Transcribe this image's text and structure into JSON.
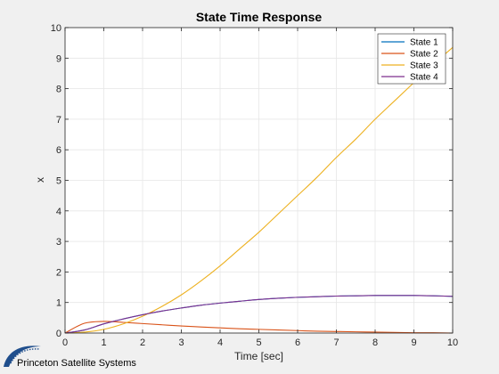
{
  "chart_data": {
    "type": "line",
    "title": "State Time Response",
    "xlabel": "Time [sec]",
    "ylabel": "x",
    "xlim": [
      0,
      10
    ],
    "ylim": [
      0,
      10
    ],
    "xticks": [
      0,
      1,
      2,
      3,
      4,
      5,
      6,
      7,
      8,
      9,
      10
    ],
    "yticks": [
      0,
      1,
      2,
      3,
      4,
      5,
      6,
      7,
      8,
      9,
      10
    ],
    "grid": true,
    "legend_position": "top-right",
    "x": [
      0,
      0.5,
      1,
      1.5,
      2,
      2.5,
      3,
      3.5,
      4,
      4.5,
      5,
      5.5,
      6,
      6.5,
      7,
      7.5,
      8,
      8.5,
      9,
      9.5,
      10
    ],
    "series": [
      {
        "name": "State 1",
        "color": "#0072BD",
        "values": [
          0,
          0.1,
          0.3,
          0.46,
          0.6,
          0.72,
          0.82,
          0.91,
          0.98,
          1.04,
          1.1,
          1.14,
          1.17,
          1.19,
          1.21,
          1.22,
          1.23,
          1.23,
          1.23,
          1.22,
          1.2
        ]
      },
      {
        "name": "State 2",
        "color": "#D95319",
        "values": [
          0,
          0.32,
          0.38,
          0.35,
          0.31,
          0.27,
          0.23,
          0.2,
          0.17,
          0.14,
          0.12,
          0.1,
          0.08,
          0.06,
          0.05,
          0.04,
          0.03,
          0.02,
          0.01,
          0.01,
          0.0
        ]
      },
      {
        "name": "State 3",
        "color": "#EDB120",
        "values": [
          0,
          0.03,
          0.12,
          0.3,
          0.55,
          0.87,
          1.25,
          1.7,
          2.2,
          2.75,
          3.3,
          3.9,
          4.5,
          5.1,
          5.75,
          6.35,
          7.0,
          7.6,
          8.2,
          8.8,
          9.35
        ]
      },
      {
        "name": "State 4",
        "color": "#7E2F8E",
        "values": [
          0,
          0.1,
          0.3,
          0.46,
          0.6,
          0.72,
          0.82,
          0.91,
          0.98,
          1.04,
          1.1,
          1.14,
          1.17,
          1.19,
          1.21,
          1.22,
          1.23,
          1.23,
          1.23,
          1.22,
          1.2
        ]
      }
    ]
  },
  "brand": {
    "name": "Princeton Satellite Systems",
    "logo_icon": "swoosh-logo-icon",
    "logo_color": "#1f4e8c"
  }
}
